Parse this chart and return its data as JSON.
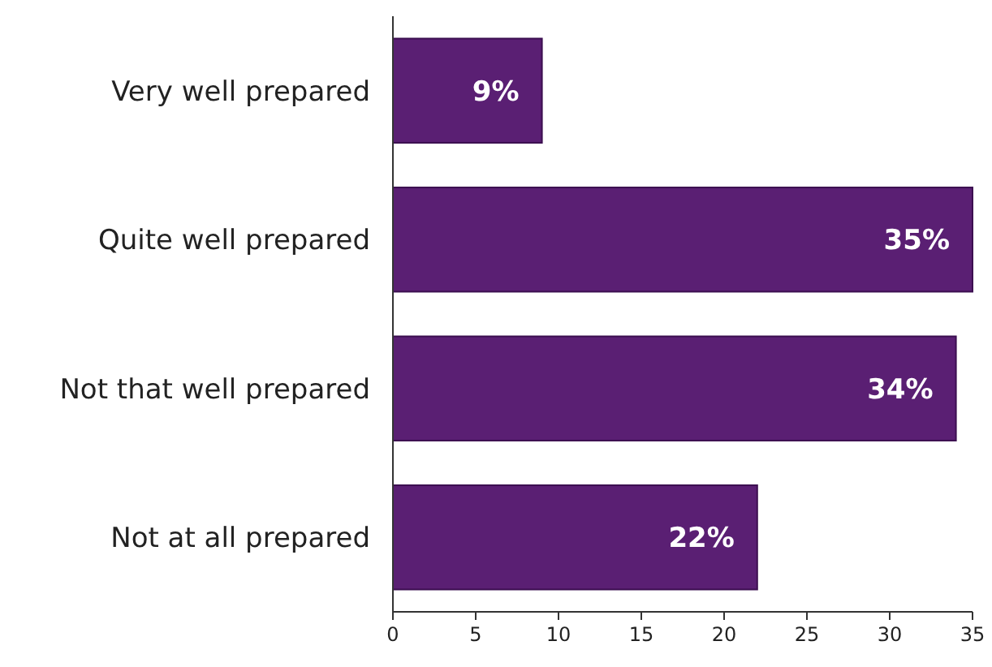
{
  "chart_data": {
    "type": "bar",
    "orientation": "horizontal",
    "categories": [
      "Very well prepared",
      "Quite well prepared",
      "Not that well prepared",
      "Not at all prepared"
    ],
    "values": [
      9,
      35,
      34,
      22
    ],
    "value_labels": [
      "9%",
      "35%",
      "34%",
      "22%"
    ],
    "color": "#5a1f73",
    "xlim": [
      0,
      35
    ],
    "xticks": [
      0,
      5,
      10,
      15,
      20,
      25,
      30,
      35
    ],
    "grid": false
  }
}
